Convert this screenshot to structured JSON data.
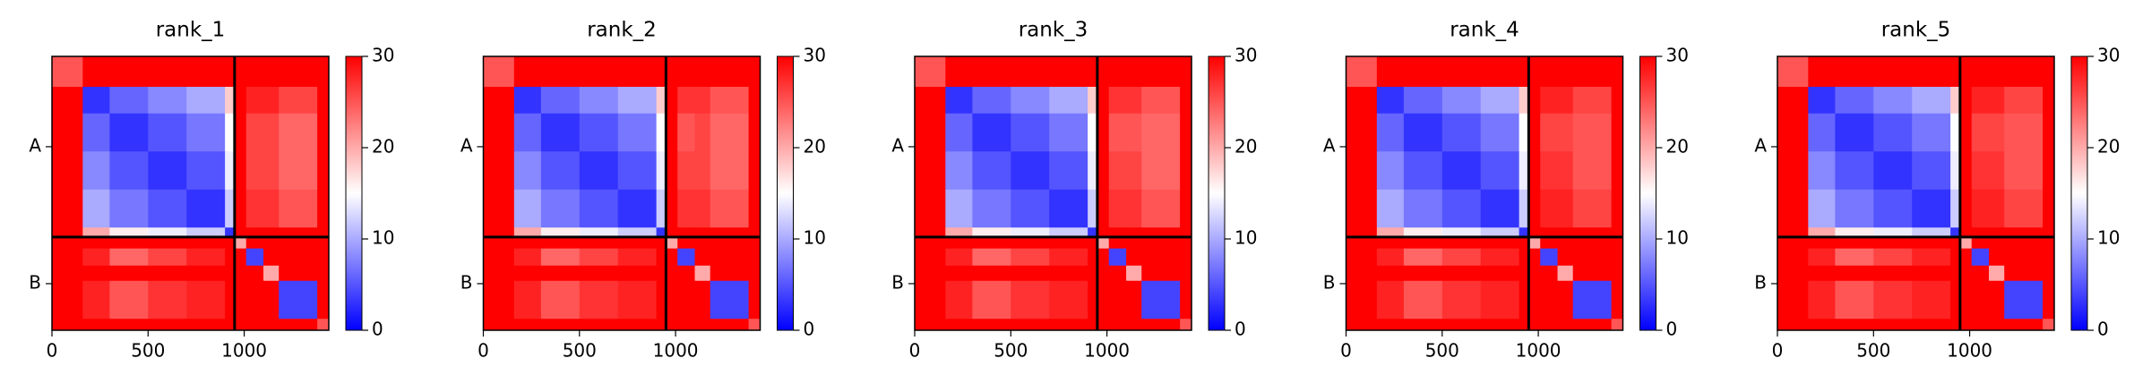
{
  "chart_data": [
    {
      "type": "heatmap",
      "title": "rank_1",
      "colormap": "bwr",
      "edges": [
        0,
        160,
        300,
        500,
        700,
        900,
        950,
        1010,
        1100,
        1180,
        1380,
        1440
      ],
      "values": [
        [
          25,
          30,
          30,
          30,
          30,
          30,
          30,
          30,
          30,
          30,
          30
        ],
        [
          30,
          3,
          6,
          8,
          10,
          18,
          30,
          28,
          28,
          26,
          30
        ],
        [
          30,
          6,
          3,
          5,
          7,
          15,
          30,
          26,
          26,
          24,
          30
        ],
        [
          30,
          8,
          5,
          3,
          5,
          14,
          30,
          26,
          26,
          24,
          30
        ],
        [
          30,
          10,
          7,
          5,
          3,
          12,
          30,
          27,
          27,
          25,
          30
        ],
        [
          30,
          20,
          16,
          14,
          12,
          3,
          30,
          30,
          30,
          30,
          30
        ],
        [
          30,
          30,
          30,
          30,
          30,
          30,
          20,
          30,
          30,
          30,
          30
        ],
        [
          30,
          28,
          24,
          26,
          28,
          30,
          30,
          4,
          30,
          30,
          30
        ],
        [
          30,
          30,
          30,
          30,
          30,
          30,
          30,
          30,
          20,
          30,
          30
        ],
        [
          30,
          28,
          25,
          27,
          28,
          30,
          30,
          30,
          30,
          4,
          30
        ],
        [
          30,
          30,
          30,
          30,
          30,
          30,
          30,
          30,
          30,
          30,
          25
        ]
      ],
      "xlim": [
        0,
        1440
      ],
      "ylim": [
        1440,
        0
      ],
      "xticks": [
        0,
        500,
        1000
      ],
      "yticks": [
        {
          "value": 475,
          "label": "A"
        },
        {
          "value": 1195,
          "label": "B"
        }
      ],
      "dividers": [
        950
      ],
      "clim": [
        0,
        30
      ],
      "cticks": [
        0,
        10,
        20,
        30
      ]
    },
    {
      "type": "heatmap",
      "title": "rank_2",
      "colormap": "bwr",
      "edges": [
        0,
        160,
        300,
        500,
        700,
        900,
        950,
        1010,
        1100,
        1180,
        1380,
        1440
      ],
      "values": [
        [
          25,
          30,
          30,
          30,
          30,
          30,
          30,
          30,
          30,
          30,
          30
        ],
        [
          30,
          3,
          6,
          8,
          10,
          18,
          30,
          27,
          27,
          25,
          30
        ],
        [
          30,
          6,
          3,
          5,
          7,
          15,
          30,
          25,
          26,
          24,
          30
        ],
        [
          30,
          8,
          5,
          3,
          5,
          14,
          30,
          26,
          26,
          24,
          30
        ],
        [
          30,
          10,
          7,
          5,
          3,
          12,
          30,
          27,
          27,
          25,
          30
        ],
        [
          30,
          20,
          16,
          14,
          12,
          3,
          30,
          30,
          30,
          30,
          30
        ],
        [
          30,
          30,
          30,
          30,
          30,
          30,
          20,
          30,
          30,
          30,
          30
        ],
        [
          30,
          28,
          24,
          26,
          28,
          30,
          30,
          4,
          30,
          30,
          30
        ],
        [
          30,
          30,
          30,
          30,
          30,
          30,
          30,
          30,
          20,
          30,
          30
        ],
        [
          30,
          28,
          25,
          27,
          28,
          30,
          30,
          30,
          30,
          4,
          30
        ],
        [
          30,
          30,
          30,
          30,
          30,
          30,
          30,
          30,
          30,
          30,
          25
        ]
      ],
      "xlim": [
        0,
        1440
      ],
      "ylim": [
        1440,
        0
      ],
      "xticks": [
        0,
        500,
        1000
      ],
      "yticks": [
        {
          "value": 475,
          "label": "A"
        },
        {
          "value": 1195,
          "label": "B"
        }
      ],
      "dividers": [
        950
      ],
      "clim": [
        0,
        30
      ],
      "cticks": [
        0,
        10,
        20,
        30
      ]
    },
    {
      "type": "heatmap",
      "title": "rank_3",
      "colormap": "bwr",
      "edges": [
        0,
        160,
        300,
        500,
        700,
        900,
        950,
        1010,
        1100,
        1180,
        1380,
        1440
      ],
      "values": [
        [
          25,
          30,
          30,
          30,
          30,
          30,
          30,
          30,
          30,
          30,
          30
        ],
        [
          30,
          3,
          6,
          8,
          10,
          18,
          30,
          27,
          27,
          25,
          30
        ],
        [
          30,
          6,
          3,
          5,
          7,
          15,
          30,
          25,
          25,
          24,
          30
        ],
        [
          30,
          8,
          5,
          3,
          5,
          14,
          30,
          26,
          26,
          24,
          30
        ],
        [
          30,
          10,
          7,
          5,
          3,
          12,
          30,
          27,
          27,
          25,
          30
        ],
        [
          30,
          20,
          16,
          14,
          12,
          3,
          30,
          30,
          30,
          30,
          30
        ],
        [
          30,
          30,
          30,
          30,
          30,
          30,
          20,
          30,
          30,
          30,
          30
        ],
        [
          30,
          28,
          24,
          26,
          28,
          30,
          30,
          4,
          30,
          30,
          30
        ],
        [
          30,
          30,
          30,
          30,
          30,
          30,
          30,
          30,
          20,
          30,
          30
        ],
        [
          30,
          28,
          25,
          27,
          28,
          30,
          30,
          30,
          30,
          4,
          30
        ],
        [
          30,
          30,
          30,
          30,
          30,
          30,
          30,
          30,
          30,
          30,
          25
        ]
      ],
      "xlim": [
        0,
        1440
      ],
      "ylim": [
        1440,
        0
      ],
      "xticks": [
        0,
        500,
        1000
      ],
      "yticks": [
        {
          "value": 475,
          "label": "A"
        },
        {
          "value": 1195,
          "label": "B"
        }
      ],
      "dividers": [
        950
      ],
      "clim": [
        0,
        30
      ],
      "cticks": [
        0,
        10,
        20,
        30
      ]
    },
    {
      "type": "heatmap",
      "title": "rank_4",
      "colormap": "bwr",
      "edges": [
        0,
        160,
        300,
        500,
        700,
        900,
        950,
        1010,
        1100,
        1180,
        1380,
        1440
      ],
      "values": [
        [
          25,
          30,
          30,
          30,
          30,
          30,
          30,
          30,
          30,
          30,
          30
        ],
        [
          30,
          3,
          6,
          8,
          10,
          18,
          30,
          28,
          28,
          26,
          30
        ],
        [
          30,
          6,
          3,
          5,
          7,
          15,
          30,
          26,
          26,
          25,
          30
        ],
        [
          30,
          8,
          5,
          3,
          5,
          14,
          30,
          27,
          27,
          25,
          30
        ],
        [
          30,
          10,
          7,
          5,
          3,
          12,
          30,
          28,
          28,
          26,
          30
        ],
        [
          30,
          20,
          16,
          14,
          12,
          3,
          30,
          30,
          30,
          30,
          30
        ],
        [
          30,
          30,
          30,
          30,
          30,
          30,
          20,
          30,
          30,
          30,
          30
        ],
        [
          30,
          28,
          24,
          26,
          28,
          30,
          30,
          4,
          30,
          30,
          30
        ],
        [
          30,
          30,
          30,
          30,
          30,
          30,
          30,
          30,
          20,
          30,
          30
        ],
        [
          30,
          28,
          25,
          27,
          28,
          30,
          30,
          30,
          30,
          4,
          30
        ],
        [
          30,
          30,
          30,
          30,
          30,
          30,
          30,
          30,
          30,
          30,
          25
        ]
      ],
      "xlim": [
        0,
        1440
      ],
      "ylim": [
        1440,
        0
      ],
      "xticks": [
        0,
        500,
        1000
      ],
      "yticks": [
        {
          "value": 475,
          "label": "A"
        },
        {
          "value": 1195,
          "label": "B"
        }
      ],
      "dividers": [
        950
      ],
      "clim": [
        0,
        30
      ],
      "cticks": [
        0,
        10,
        20,
        30
      ]
    },
    {
      "type": "heatmap",
      "title": "rank_5",
      "colormap": "bwr",
      "edges": [
        0,
        160,
        300,
        500,
        700,
        900,
        950,
        1010,
        1100,
        1180,
        1380,
        1440
      ],
      "values": [
        [
          25,
          30,
          30,
          30,
          30,
          30,
          30,
          30,
          30,
          30,
          30
        ],
        [
          30,
          3,
          6,
          8,
          10,
          18,
          30,
          28,
          28,
          26,
          30
        ],
        [
          30,
          6,
          3,
          5,
          7,
          15,
          30,
          26,
          26,
          25,
          30
        ],
        [
          30,
          8,
          5,
          3,
          5,
          14,
          30,
          27,
          27,
          25,
          30
        ],
        [
          30,
          10,
          7,
          5,
          3,
          12,
          30,
          28,
          28,
          26,
          30
        ],
        [
          30,
          20,
          16,
          14,
          12,
          3,
          30,
          30,
          30,
          30,
          30
        ],
        [
          30,
          30,
          30,
          30,
          30,
          30,
          20,
          30,
          30,
          30,
          30
        ],
        [
          30,
          28,
          24,
          26,
          28,
          30,
          30,
          4,
          30,
          30,
          30
        ],
        [
          30,
          30,
          30,
          30,
          30,
          30,
          30,
          30,
          20,
          30,
          30
        ],
        [
          30,
          28,
          25,
          27,
          28,
          30,
          30,
          30,
          30,
          4,
          30
        ],
        [
          30,
          30,
          30,
          30,
          30,
          30,
          30,
          30,
          30,
          30,
          25
        ]
      ],
      "xlim": [
        0,
        1440
      ],
      "ylim": [
        1440,
        0
      ],
      "xticks": [
        0,
        500,
        1000
      ],
      "yticks": [
        {
          "value": 475,
          "label": "A"
        },
        {
          "value": 1195,
          "label": "B"
        }
      ],
      "dividers": [
        950
      ],
      "clim": [
        0,
        30
      ],
      "cticks": [
        0,
        10,
        20,
        30
      ]
    }
  ]
}
